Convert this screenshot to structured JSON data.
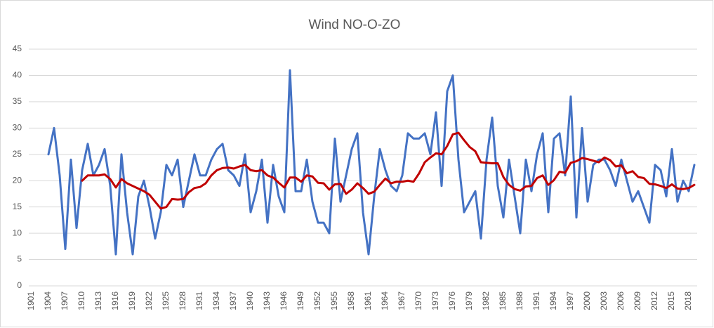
{
  "chart_data": {
    "type": "line",
    "title": "Wind NO-O-ZO",
    "categories": [
      "1901",
      null,
      null,
      "1904",
      null,
      null,
      "1907",
      null,
      null,
      "1910",
      null,
      null,
      "1913",
      null,
      null,
      "1916",
      null,
      null,
      "1919",
      null,
      null,
      "1922",
      null,
      null,
      "1925",
      null,
      null,
      "1928",
      null,
      null,
      "1931",
      null,
      null,
      "1934",
      null,
      null,
      "1937",
      null,
      null,
      "1940",
      null,
      null,
      "1943",
      null,
      null,
      "1946",
      null,
      null,
      "1949",
      null,
      null,
      "1952",
      null,
      null,
      "1955",
      null,
      null,
      "1958",
      null,
      null,
      "1961",
      null,
      null,
      "1964",
      null,
      null,
      "1967",
      null,
      null,
      "1970",
      null,
      null,
      "1973",
      null,
      null,
      "1976",
      null,
      null,
      "1979",
      null,
      null,
      "1982",
      null,
      null,
      "1985",
      null,
      null,
      "1988",
      null,
      null,
      "1991",
      null,
      null,
      "1994",
      null,
      null,
      "1997",
      null,
      null,
      "2000",
      null,
      null,
      "2003",
      null,
      null,
      "2006",
      null,
      null,
      "2009",
      null,
      null,
      "2012",
      null,
      null,
      "2015",
      null,
      null,
      "2018",
      null
    ],
    "series": [
      {
        "color": "#4472c4",
        "values": [
          null,
          null,
          null,
          25,
          30,
          21,
          7,
          24,
          11,
          22,
          27,
          21,
          23,
          26,
          19,
          6,
          25,
          14,
          6,
          17,
          20,
          15,
          9,
          14,
          23,
          21,
          24,
          15,
          20,
          25,
          21,
          21,
          24,
          26,
          27,
          22,
          21,
          19,
          25,
          14,
          18,
          24,
          12,
          23,
          17,
          14,
          41,
          18,
          18,
          24,
          16,
          12,
          12,
          10,
          28,
          16,
          21,
          26,
          29,
          14,
          6,
          17,
          26,
          22,
          19,
          18,
          21,
          29,
          28,
          28,
          29,
          25,
          33,
          19,
          37,
          40,
          24,
          14,
          16,
          18,
          9,
          24,
          32,
          19,
          13,
          24,
          17,
          10,
          24,
          18,
          25,
          29,
          14,
          28,
          29,
          21,
          36,
          13,
          30,
          16,
          23,
          24,
          24,
          22,
          19,
          24,
          20,
          16,
          18,
          15,
          12,
          23,
          22,
          17,
          26,
          16,
          20,
          18,
          23
        ]
      },
      {
        "color": "#c00000",
        "values": [
          null,
          null,
          null,
          null,
          null,
          null,
          null,
          null,
          null,
          20,
          21,
          21,
          21,
          21.2,
          20.3,
          18.7,
          20.3,
          19.5,
          19,
          18.5,
          18,
          17.3,
          16,
          14.7,
          15,
          16.5,
          16.4,
          16.5,
          17.8,
          18.6,
          18.8,
          19.5,
          21,
          22,
          22.4,
          22.5,
          22.3,
          22.7,
          23,
          22,
          21.8,
          22,
          21,
          20.6,
          19.6,
          18.7,
          20.6,
          20.6,
          19.8,
          21,
          20.8,
          19.6,
          19.5,
          18.3,
          19.3,
          19.4,
          17.5,
          18.3,
          19.5,
          18.6,
          17.5,
          17.9,
          19.2,
          20.4,
          19.5,
          19.8,
          19.8,
          20,
          19.8,
          21.4,
          23.5,
          24.4,
          25.2,
          25,
          26.6,
          28.8,
          29.1,
          27.7,
          26.4,
          25.6,
          23.5,
          23.4,
          23.3,
          23.3,
          20.7,
          19.2,
          18.4,
          18.1,
          18.9,
          19,
          20.5,
          21,
          19.2,
          20.1,
          21.7,
          21.5,
          23.4,
          23.7,
          24.3,
          24.1,
          23.8,
          23.5,
          24.4,
          23.9,
          22.7,
          22.9,
          21.4,
          21.8,
          20.7,
          20.5,
          19.4,
          19.3,
          19,
          18.6,
          19.3,
          18.5,
          18.4,
          18.6,
          19.2
        ]
      }
    ],
    "ylim": [
      0,
      45
    ],
    "yticks": [
      0,
      5,
      10,
      15,
      20,
      25,
      30,
      35,
      40,
      45
    ],
    "grid": true
  }
}
